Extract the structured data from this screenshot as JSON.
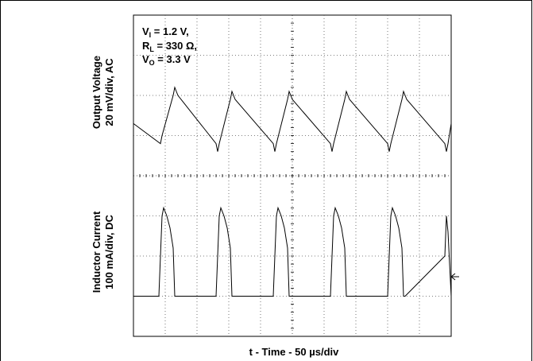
{
  "chart_data": {
    "type": "line",
    "title": "",
    "grid": true,
    "xlabel": "t - Time - 50 µs/div",
    "divisions": {
      "x": 10,
      "y": 8
    },
    "annotation": {
      "line1": {
        "main": "V",
        "sub": "I",
        "rest": " = 1.2 V,"
      },
      "line2": {
        "main": "R",
        "sub": "L",
        "rest": " = 330 Ω,"
      },
      "line3": {
        "main": "V",
        "sub": "O",
        "rest": " = 3.3 V"
      }
    },
    "channels": [
      {
        "ylabel_line1": "Output Voltage",
        "ylabel_line2": "20 mV/div, AC"
      },
      {
        "ylabel_line1": "Inductor Current",
        "ylabel_line2": "100 mA/div, DC"
      }
    ],
    "series": [
      {
        "unit": "div",
        "x": [
          0.0,
          0.85,
          0.9,
          1.25,
          1.3,
          1.35,
          1.4,
          2.6,
          2.65,
          2.7,
          3.05,
          3.1,
          3.15,
          3.2,
          4.4,
          4.45,
          4.5,
          4.85,
          4.9,
          4.95,
          5.0,
          6.2,
          6.25,
          6.3,
          6.65,
          6.7,
          6.75,
          6.8,
          8.0,
          8.05,
          8.1,
          8.45,
          8.5,
          8.55,
          8.6,
          9.8,
          9.85,
          9.9,
          10.0
        ],
        "values": [
          5.3,
          4.8,
          5.0,
          6.0,
          6.2,
          6.1,
          6.0,
          4.8,
          4.6,
          4.8,
          5.9,
          6.1,
          6.0,
          5.9,
          4.8,
          4.6,
          4.8,
          5.9,
          6.1,
          6.0,
          5.9,
          4.8,
          4.6,
          4.8,
          5.9,
          6.1,
          6.0,
          5.9,
          4.8,
          4.6,
          4.8,
          5.9,
          6.1,
          6.0,
          5.9,
          4.8,
          4.6,
          4.8,
          5.3
        ]
      },
      {
        "unit": "div",
        "x": [
          0.0,
          0.75,
          0.8,
          0.85,
          0.9,
          0.95,
          1.05,
          1.15,
          1.25,
          1.3,
          1.35,
          2.6,
          2.65,
          2.7,
          2.75,
          2.85,
          2.95,
          3.05,
          3.1,
          3.15,
          4.4,
          4.45,
          4.5,
          4.55,
          4.65,
          4.75,
          4.85,
          4.9,
          4.95,
          6.2,
          6.25,
          6.3,
          6.35,
          6.45,
          6.55,
          6.65,
          6.7,
          6.75,
          8.0,
          8.05,
          8.1,
          8.15,
          8.25,
          8.35,
          8.45,
          8.5,
          8.55,
          9.8,
          9.85,
          9.9,
          9.95,
          10.0
        ],
        "values": [
          1.0,
          1.0,
          1.0,
          2.0,
          3.0,
          3.2,
          3.0,
          2.7,
          2.2,
          1.0,
          1.0,
          1.0,
          2.0,
          3.0,
          3.2,
          3.0,
          2.7,
          2.2,
          1.0,
          1.0,
          1.0,
          2.0,
          3.0,
          3.2,
          3.0,
          2.7,
          2.2,
          1.0,
          1.0,
          1.0,
          2.0,
          3.0,
          3.2,
          3.0,
          2.7,
          2.2,
          1.0,
          1.0,
          1.0,
          2.0,
          3.0,
          3.2,
          3.0,
          2.7,
          2.2,
          1.0,
          1.0,
          2.0,
          3.0,
          2.6,
          1.8,
          1.0
        ]
      }
    ]
  }
}
